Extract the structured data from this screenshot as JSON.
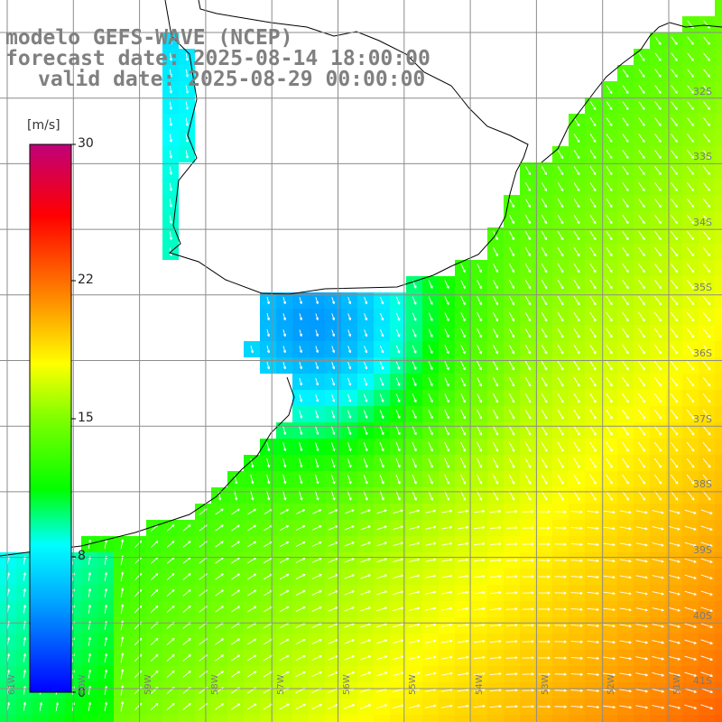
{
  "header": {
    "line1": "modelo GEFS-WAVE (NCEP)",
    "line2": "forecast date: 2025-08-14 18:00:00",
    "line3": "valid date: 2025-08-29 00:00:00"
  },
  "colorbar": {
    "unit": "[m/s]",
    "ticks": [
      {
        "label": "30",
        "value": 30
      },
      {
        "label": "22",
        "value": 22
      },
      {
        "label": "15",
        "value": 15
      },
      {
        "label": "8",
        "value": 8
      },
      {
        "label": "0",
        "value": 0
      }
    ],
    "colors": [
      "#0000ff",
      "#00aaff",
      "#00ffff",
      "#00ff00",
      "#7fff00",
      "#ffff00",
      "#ff8000",
      "#ff0000",
      "#c0007a"
    ]
  },
  "map": {
    "lat_labels": [
      "32S",
      "33S",
      "34S",
      "35S",
      "36S",
      "37S",
      "38S",
      "39S",
      "40S",
      "41S"
    ],
    "lon_labels": [
      "61W",
      "60W",
      "59W",
      "58W",
      "57W",
      "56W",
      "55W",
      "54W",
      "53W",
      "52W",
      "51W"
    ],
    "land_color": "#ffffff",
    "grid_color": "#8c8c8c",
    "arrow_color": "#ffffff"
  }
}
